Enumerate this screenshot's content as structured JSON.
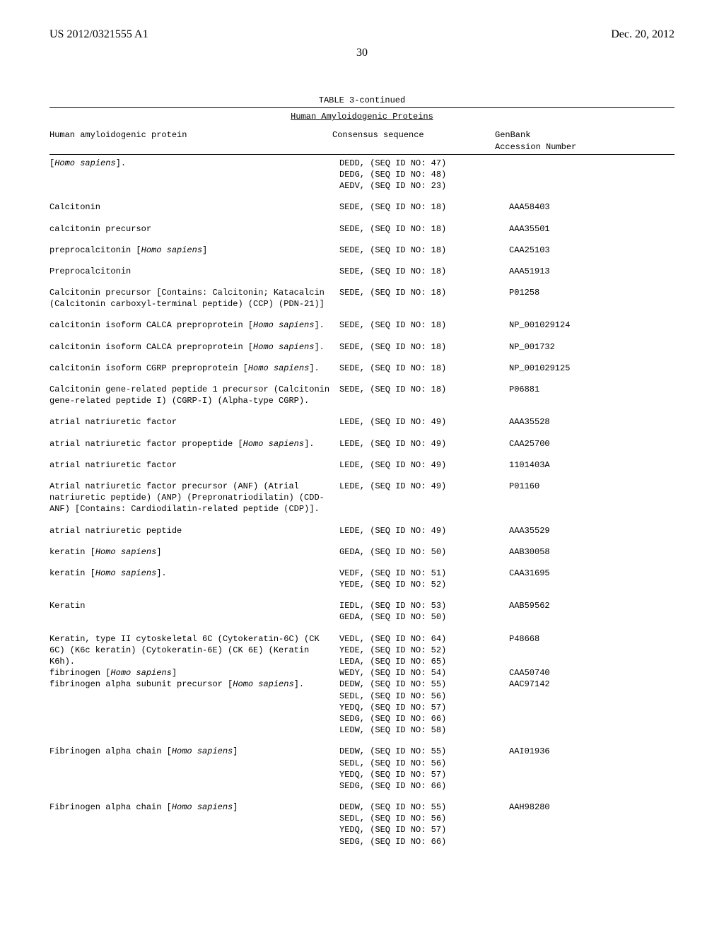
{
  "header": {
    "pub_number": "US 2012/0321555 A1",
    "pub_date": "Dec. 20, 2012",
    "page_number": "30"
  },
  "table": {
    "caption": "TABLE 3-continued",
    "subtitle": "Human Amyloidogenic Proteins",
    "columns": {
      "c1": "Human amyloidogenic protein",
      "c2": "Consensus sequence",
      "c3_line1": "GenBank",
      "c3_line2": "Accession Number"
    },
    "rows": [
      {
        "protein": [
          {
            "text": "[",
            "italic": false
          },
          {
            "text": "Homo sapiens",
            "italic": true
          },
          {
            "text": "].",
            "italic": false
          }
        ],
        "seqs": [
          "DEDD, (SEQ ID NO: 47)",
          "DEDG, (SEQ ID NO: 48)",
          "AEDV, (SEQ ID NO: 23)"
        ],
        "accession": ""
      },
      {
        "protein": [
          {
            "text": "Calcitonin",
            "italic": false
          }
        ],
        "seqs": [
          "SEDE, (SEQ ID NO: 18)"
        ],
        "accession": "AAA58403"
      },
      {
        "protein": [
          {
            "text": "calcitonin precursor",
            "italic": false
          }
        ],
        "seqs": [
          "SEDE, (SEQ ID NO: 18)"
        ],
        "accession": "AAA35501"
      },
      {
        "protein": [
          {
            "text": "preprocalcitonin [",
            "italic": false
          },
          {
            "text": "Homo sapiens",
            "italic": true
          },
          {
            "text": "]",
            "italic": false
          }
        ],
        "seqs": [
          "SEDE, (SEQ ID NO: 18)"
        ],
        "accession": "CAA25103"
      },
      {
        "protein": [
          {
            "text": "Preprocalcitonin",
            "italic": false
          }
        ],
        "seqs": [
          "SEDE, (SEQ ID NO: 18)"
        ],
        "accession": "AAA51913"
      },
      {
        "protein": [
          {
            "text": "Calcitonin precursor [Contains: Calcitonin; Katacalcin (Calcitonin carboxyl-terminal peptide) (CCP) (PDN-21)]",
            "italic": false
          }
        ],
        "seqs": [
          "SEDE, (SEQ ID NO: 18)"
        ],
        "accession": "P01258"
      },
      {
        "protein": [
          {
            "text": "calcitonin isoform CALCA preproprotein [",
            "italic": false
          },
          {
            "text": "Homo sapiens",
            "italic": true
          },
          {
            "text": "].",
            "italic": false
          }
        ],
        "seqs": [
          "SEDE, (SEQ ID NO: 18)"
        ],
        "accession": "NP_001029124"
      },
      {
        "protein": [
          {
            "text": "calcitonin isoform CALCA preproprotein [",
            "italic": false
          },
          {
            "text": "Homo sapiens",
            "italic": true
          },
          {
            "text": "].",
            "italic": false
          }
        ],
        "seqs": [
          "SEDE, (SEQ ID NO: 18)"
        ],
        "accession": "NP_001732"
      },
      {
        "protein": [
          {
            "text": "calcitonin isoform CGRP preproprotein [",
            "italic": false
          },
          {
            "text": "Homo sapiens",
            "italic": true
          },
          {
            "text": "].",
            "italic": false
          }
        ],
        "seqs": [
          "SEDE, (SEQ ID NO: 18)"
        ],
        "accession": "NP_001029125"
      },
      {
        "protein": [
          {
            "text": "Calcitonin gene-related peptide 1 precursor (Calcitonin gene-related peptide I) (CGRP-I) (Alpha-type CGRP).",
            "italic": false
          }
        ],
        "seqs": [
          "SEDE, (SEQ ID NO: 18)"
        ],
        "accession": "P06881"
      },
      {
        "protein": [
          {
            "text": "atrial natriuretic factor",
            "italic": false
          }
        ],
        "seqs": [
          "LEDE, (SEQ ID NO: 49)"
        ],
        "accession": "AAA35528"
      },
      {
        "protein": [
          {
            "text": "atrial natriuretic factor propeptide [",
            "italic": false
          },
          {
            "text": "Homo sapiens",
            "italic": true
          },
          {
            "text": "].",
            "italic": false
          }
        ],
        "seqs": [
          "LEDE, (SEQ ID NO: 49)"
        ],
        "accession": "CAA25700"
      },
      {
        "protein": [
          {
            "text": "atrial natriuretic factor",
            "italic": false
          }
        ],
        "seqs": [
          "LEDE, (SEQ ID NO: 49)"
        ],
        "accession": "1101403A"
      },
      {
        "protein": [
          {
            "text": "Atrial natriuretic factor precursor (ANF) (Atrial natriuretic peptide) (ANP) (Prepronatriodilatin) (CDD-ANF) [Contains: Cardiodilatin-related peptide (CDP)].",
            "italic": false
          }
        ],
        "seqs": [
          "LEDE, (SEQ ID NO: 49)"
        ],
        "accession": "P01160"
      },
      {
        "protein": [
          {
            "text": "atrial natriuretic peptide",
            "italic": false
          }
        ],
        "seqs": [
          "LEDE, (SEQ ID NO: 49)"
        ],
        "accession": "AAA35529"
      },
      {
        "protein": [
          {
            "text": "keratin [",
            "italic": false
          },
          {
            "text": "Homo sapiens",
            "italic": true
          },
          {
            "text": "]",
            "italic": false
          }
        ],
        "seqs": [
          "GEDA, (SEQ ID NO: 50)"
        ],
        "accession": "AAB30058"
      },
      {
        "protein": [
          {
            "text": "keratin [",
            "italic": false
          },
          {
            "text": "Homo sapiens",
            "italic": true
          },
          {
            "text": "].",
            "italic": false
          }
        ],
        "seqs": [
          "VEDF, (SEQ ID NO: 51)",
          "YEDE, (SEQ ID NO: 52)"
        ],
        "accession": "CAA31695"
      },
      {
        "protein": [
          {
            "text": "Keratin",
            "italic": false
          }
        ],
        "seqs": [
          "IEDL, (SEQ ID NO: 53)",
          "GEDA, (SEQ ID NO: 50)"
        ],
        "accession": "AAB59562"
      },
      {
        "protein": [
          {
            "text": "Keratin, type II cytoskeletal 6C (Cytokeratin-6C) (CK 6C) (K6c keratin) (Cytokeratin-6E) (CK 6E) (Keratin K6h).",
            "italic": false
          }
        ],
        "seqs": [
          "VEDL, (SEQ ID NO: 64)",
          "YEDE, (SEQ ID NO: 52)",
          "LEDA, (SEQ ID NO: 65)"
        ],
        "accession": "P48668",
        "tight": true
      },
      {
        "protein": [
          {
            "text": "fibrinogen [",
            "italic": false
          },
          {
            "text": "Homo sapiens",
            "italic": true
          },
          {
            "text": "]",
            "italic": false
          }
        ],
        "seqs": [
          "WEDY, (SEQ ID NO: 54)"
        ],
        "accession": "CAA50740",
        "tight": true
      },
      {
        "protein": [
          {
            "text": "fibrinogen alpha subunit precursor [",
            "italic": false
          },
          {
            "text": "Homo sapiens",
            "italic": true
          },
          {
            "text": "].",
            "italic": false
          }
        ],
        "seqs": [
          "DEDW, (SEQ ID NO: 55)",
          "SEDL, (SEQ ID NO: 56)",
          "YEDQ, (SEQ ID NO: 57)",
          "SEDG, (SEQ ID NO: 66)",
          "LEDW, (SEQ ID NO: 58)"
        ],
        "accession": "AAC97142"
      },
      {
        "protein": [
          {
            "text": "Fibrinogen alpha chain [",
            "italic": false
          },
          {
            "text": "Homo sapiens",
            "italic": true
          },
          {
            "text": "]",
            "italic": false
          }
        ],
        "seqs": [
          "DEDW, (SEQ ID NO: 55)",
          "SEDL, (SEQ ID NO: 56)",
          "YEDQ, (SEQ ID NO: 57)",
          "SEDG, (SEQ ID NO: 66)"
        ],
        "accession": "AAI01936"
      },
      {
        "protein": [
          {
            "text": "Fibrinogen alpha chain [",
            "italic": false
          },
          {
            "text": "Homo sapiens",
            "italic": true
          },
          {
            "text": "]",
            "italic": false
          }
        ],
        "seqs": [
          "DEDW, (SEQ ID NO: 55)",
          "SEDL, (SEQ ID NO: 56)",
          "YEDQ, (SEQ ID NO: 57)",
          "SEDG, (SEQ ID NO: 66)"
        ],
        "accession": "AAH98280"
      }
    ]
  }
}
